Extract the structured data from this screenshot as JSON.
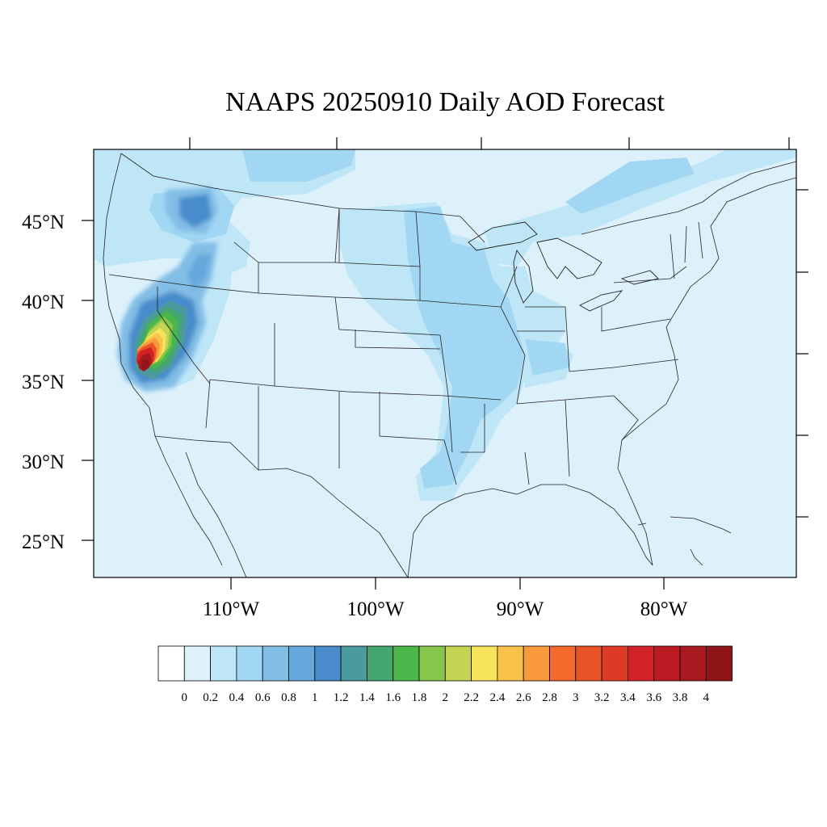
{
  "title": "NAAPS 20250910 Daily AOD Forecast",
  "map": {
    "lat_labels": [
      "45°N",
      "40°N",
      "35°N",
      "30°N",
      "25°N"
    ],
    "lon_labels": [
      "110°W",
      "100°W",
      "90°W",
      "80°W"
    ],
    "background_color": "#ddf1fb",
    "plume_center": "central California"
  },
  "colorbar": {
    "colors": [
      "#ffffff",
      "#ddf1fb",
      "#bfe6f7",
      "#a1d7f3",
      "#82bde6",
      "#66a8dc",
      "#4a8ccb",
      "#4c9aa0",
      "#44a670",
      "#4bb649",
      "#86c64c",
      "#c3d453",
      "#f7e35a",
      "#f8c14a",
      "#f79a3c",
      "#f26b2d",
      "#e85428",
      "#de3b26",
      "#d22127",
      "#bd1b24",
      "#a81a1f",
      "#901519"
    ],
    "labels": [
      "0",
      "0.2",
      "0.4",
      "0.6",
      "0.8",
      "1",
      "1.2",
      "1.4",
      "1.6",
      "1.8",
      "2",
      "2.2",
      "2.4",
      "2.6",
      "2.8",
      "3",
      "3.2",
      "3.4",
      "3.6",
      "3.8",
      "4"
    ]
  }
}
